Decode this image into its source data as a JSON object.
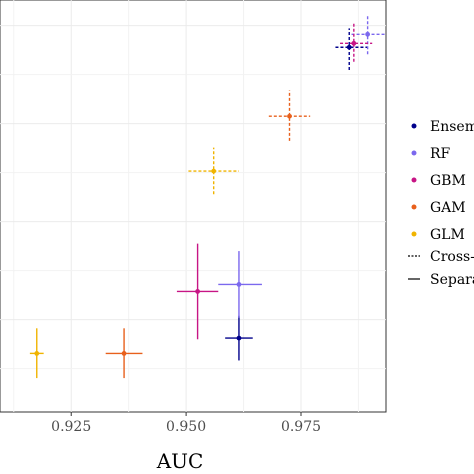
{
  "chart_data": {
    "type": "scatter",
    "title": "",
    "xlabel": "AUC",
    "ylabel": "",
    "x_ticks": [
      0.925,
      0.95,
      0.975
    ],
    "x_tick_labels": [
      "0.925",
      "0.950",
      "0.975"
    ],
    "xlim": [
      0.9095,
      0.9935
    ],
    "ylim": [
      0.0,
      1.0
    ],
    "grid": true,
    "legend_position": "right",
    "legend": {
      "models": [
        {
          "label": "Ensem",
          "color": "#00008B"
        },
        {
          "label": "RF",
          "color": "#7B68EE"
        },
        {
          "label": "GBM",
          "color": "#C71585"
        },
        {
          "label": "GAM",
          "color": "#E8601C"
        },
        {
          "label": "GLM",
          "color": "#F0B400"
        }
      ],
      "line_types": [
        {
          "label": "Cross-",
          "style": "dotted"
        },
        {
          "label": "Separa",
          "style": "solid"
        }
      ]
    },
    "series": [
      {
        "name": "Ensem",
        "style": "dotted",
        "x": 0.9855,
        "y": 0.905,
        "xerr": [
          0.9825,
          0.9895
        ],
        "yerr": [
          0.847,
          0.953
        ]
      },
      {
        "name": "RF",
        "style": "dotted",
        "x": 0.9895,
        "y": 0.938,
        "xerr": [
          0.986,
          0.9935
        ],
        "yerr": [
          0.887,
          0.989
        ]
      },
      {
        "name": "GBM",
        "style": "dotted",
        "x": 0.9865,
        "y": 0.915,
        "xerr": [
          0.9835,
          0.9905
        ],
        "yerr": [
          0.868,
          0.966
        ]
      },
      {
        "name": "GAM",
        "style": "dotted",
        "x": 0.9725,
        "y": 0.729,
        "xerr": [
          0.968,
          0.977
        ],
        "yerr": [
          0.666,
          0.795
        ]
      },
      {
        "name": "GLM",
        "style": "dotted",
        "x": 0.956,
        "y": 0.589,
        "xerr": [
          0.9505,
          0.9615
        ],
        "yerr": [
          0.53,
          0.649
        ]
      },
      {
        "name": "Ensem",
        "style": "solid",
        "x": 0.9615,
        "y": 0.163,
        "xerr": [
          0.9585,
          0.9645
        ],
        "yerr": [
          0.106,
          0.22
        ]
      },
      {
        "name": "RF",
        "style": "solid",
        "x": 0.9615,
        "y": 0.3,
        "xerr": [
          0.957,
          0.9665
        ],
        "yerr": [
          0.215,
          0.385
        ]
      },
      {
        "name": "GBM",
        "style": "solid",
        "x": 0.9525,
        "y": 0.282,
        "xerr": [
          0.948,
          0.957
        ],
        "yerr": [
          0.16,
          0.404
        ]
      },
      {
        "name": "GAM",
        "style": "solid",
        "x": 0.9365,
        "y": 0.124,
        "xerr": [
          0.9325,
          0.9405
        ],
        "yerr": [
          0.061,
          0.188
        ]
      },
      {
        "name": "GLM",
        "style": "solid",
        "x": 0.9175,
        "y": 0.124,
        "xerr": [
          0.916,
          0.919
        ],
        "yerr": [
          0.061,
          0.188
        ]
      }
    ]
  }
}
